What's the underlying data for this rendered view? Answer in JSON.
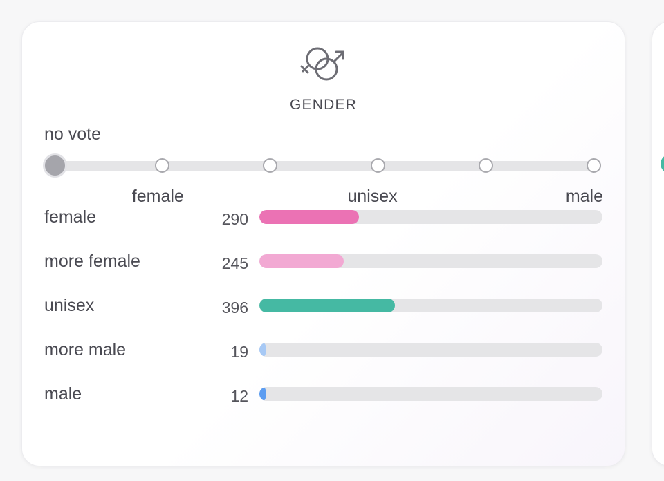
{
  "card": {
    "title": "GENDER",
    "icon": "gender-symbols-icon",
    "no_vote_label": "no vote",
    "slider": {
      "stops": 6,
      "selected_index": 0,
      "labels": [
        {
          "text": "female",
          "stop": 1
        },
        {
          "text": "unisex",
          "stop": 3
        },
        {
          "text": "male",
          "stop": 5
        }
      ]
    },
    "votes": {
      "max": 1000,
      "rows": [
        {
          "label": "female",
          "count": 290,
          "color": "#eb72b4"
        },
        {
          "label": "more female",
          "count": 245,
          "color": "#f2a9d3"
        },
        {
          "label": "unisex",
          "count": 396,
          "color": "#45b9a3"
        },
        {
          "label": "more male",
          "count": 19,
          "color": "#a7c9f5"
        },
        {
          "label": "male",
          "count": 12,
          "color": "#5d9df1"
        }
      ]
    }
  },
  "colors": {
    "stop_selected": "#a5a5ab",
    "track": "#e5e5e7",
    "next_card_dot": "#45b9a3"
  }
}
